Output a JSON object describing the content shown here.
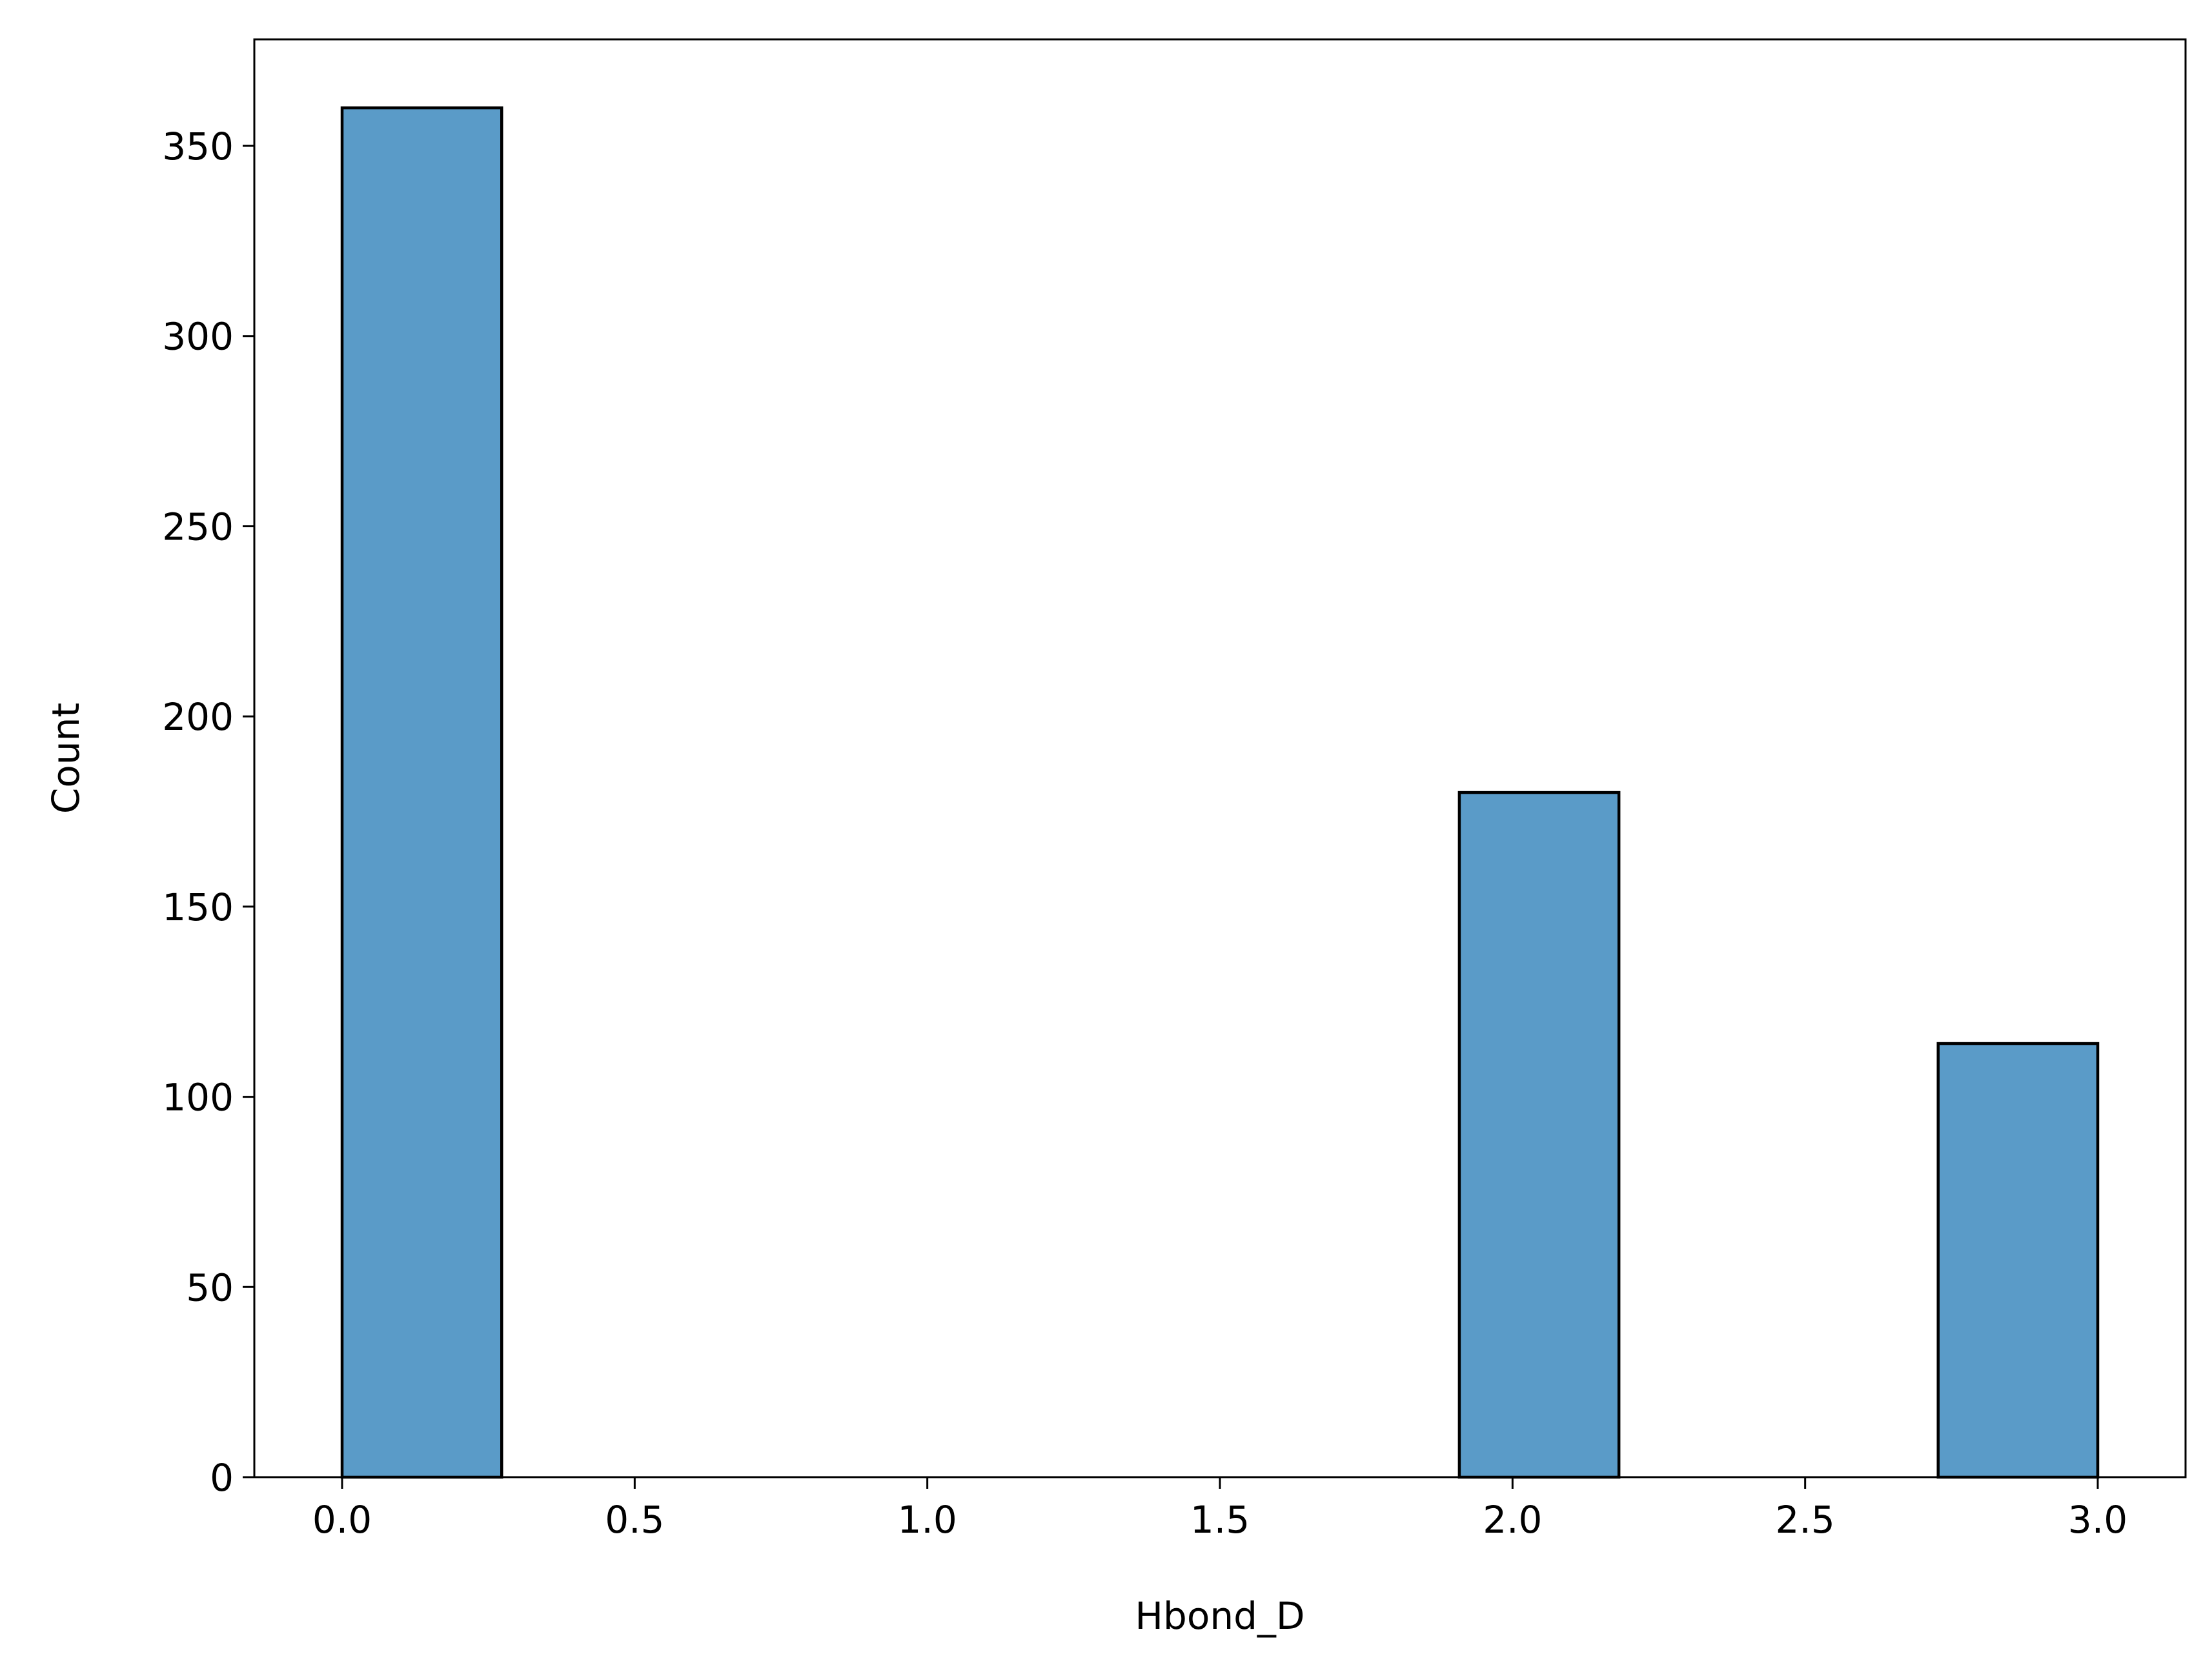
{
  "chart_data": {
    "type": "bar",
    "subtype": "histogram",
    "title": "",
    "xlabel": "Hbond_D",
    "ylabel": "Count",
    "xlim": [
      -0.15,
      3.15
    ],
    "ylim": [
      0,
      378
    ],
    "bins": [
      {
        "x0": 0.0,
        "x1": 0.2727,
        "count": 360
      },
      {
        "x0": 1.9091,
        "x1": 2.1818,
        "count": 180
      },
      {
        "x0": 2.7273,
        "x1": 3.0,
        "count": 114
      }
    ],
    "x_ticks": [
      {
        "value": 0.0,
        "label": "0.0"
      },
      {
        "value": 0.5,
        "label": "0.5"
      },
      {
        "value": 1.0,
        "label": "1.0"
      },
      {
        "value": 1.5,
        "label": "1.5"
      },
      {
        "value": 2.0,
        "label": "2.0"
      },
      {
        "value": 2.5,
        "label": "2.5"
      },
      {
        "value": 3.0,
        "label": "3.0"
      }
    ],
    "y_ticks": [
      {
        "value": 0,
        "label": "0"
      },
      {
        "value": 50,
        "label": "50"
      },
      {
        "value": 100,
        "label": "100"
      },
      {
        "value": 150,
        "label": "150"
      },
      {
        "value": 200,
        "label": "200"
      },
      {
        "value": 250,
        "label": "250"
      },
      {
        "value": 300,
        "label": "300"
      },
      {
        "value": 350,
        "label": "350"
      }
    ],
    "grid": false,
    "legend": "none",
    "colors": {
      "bar_fill": "#5a9bc8",
      "bar_edge": "#000000",
      "axes": "#000000",
      "background": "#ffffff"
    }
  }
}
